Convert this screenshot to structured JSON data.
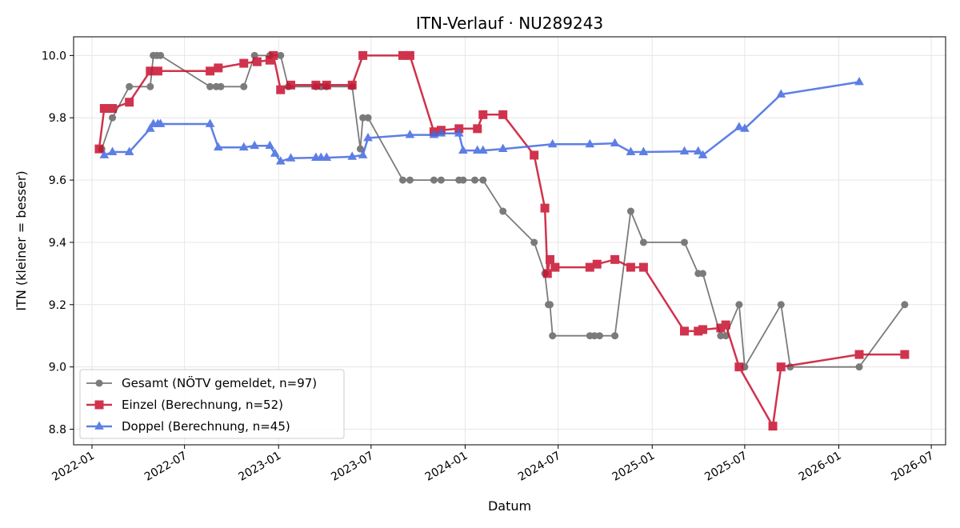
{
  "chart_data": {
    "type": "line",
    "title": "ITN-Verlauf · NU289243",
    "xlabel": "Datum",
    "ylabel": "ITN  (kleiner = besser)",
    "x_type": "date",
    "xlim": [
      "2021-11-26",
      "2026-07-29"
    ],
    "ylim": [
      8.75,
      10.06
    ],
    "grid": true,
    "legend_position": "lower-left",
    "x_ticks": [
      "2022-01-01",
      "2022-07-01",
      "2023-01-01",
      "2023-07-01",
      "2024-01-01",
      "2024-07-01",
      "2025-01-01",
      "2025-07-01",
      "2026-01-01",
      "2026-07-01"
    ],
    "x_tick_labels": [
      "2022-01",
      "2022-07",
      "2023-01",
      "2023-07",
      "2024-01",
      "2024-07",
      "2025-01",
      "2025-07",
      "2026-01",
      "2026-07"
    ],
    "y_ticks": [
      8.8,
      9.0,
      9.2,
      9.4,
      9.6,
      9.8,
      10.0
    ],
    "y_tick_labels": [
      "8.8",
      "9.0",
      "9.2",
      "9.4",
      "9.6",
      "9.8",
      "10.0"
    ],
    "series": [
      {
        "name": "Gesamt (NÖTV gemeldet, n=97)",
        "color": "#505050",
        "marker": "circle",
        "points": [
          [
            "2022-01-20",
            9.7
          ],
          [
            "2022-02-10",
            9.8
          ],
          [
            "2022-03-15",
            9.9
          ],
          [
            "2022-04-25",
            9.9
          ],
          [
            "2022-05-01",
            10.0
          ],
          [
            "2022-05-08",
            10.0
          ],
          [
            "2022-05-15",
            10.0
          ],
          [
            "2022-08-20",
            9.9
          ],
          [
            "2022-09-01",
            9.9
          ],
          [
            "2022-09-10",
            9.9
          ],
          [
            "2022-10-25",
            9.9
          ],
          [
            "2022-11-15",
            10.0
          ],
          [
            "2022-12-15",
            10.0
          ],
          [
            "2023-01-05",
            10.0
          ],
          [
            "2023-01-20",
            9.9
          ],
          [
            "2023-03-15",
            9.9
          ],
          [
            "2023-03-25",
            9.9
          ],
          [
            "2023-04-05",
            9.9
          ],
          [
            "2023-05-25",
            9.9
          ],
          [
            "2023-06-10",
            9.7
          ],
          [
            "2023-06-15",
            9.8
          ],
          [
            "2023-06-25",
            9.8
          ],
          [
            "2023-09-01",
            9.6
          ],
          [
            "2023-09-15",
            9.6
          ],
          [
            "2023-11-01",
            9.6
          ],
          [
            "2023-11-15",
            9.6
          ],
          [
            "2023-12-20",
            9.6
          ],
          [
            "2023-12-28",
            9.6
          ],
          [
            "2024-01-20",
            9.6
          ],
          [
            "2024-02-05",
            9.6
          ],
          [
            "2024-03-15",
            9.5
          ],
          [
            "2024-05-15",
            9.4
          ],
          [
            "2024-06-05",
            9.3
          ],
          [
            "2024-06-12",
            9.2
          ],
          [
            "2024-06-15",
            9.2
          ],
          [
            "2024-06-20",
            9.1
          ],
          [
            "2024-09-01",
            9.1
          ],
          [
            "2024-09-10",
            9.1
          ],
          [
            "2024-09-20",
            9.1
          ],
          [
            "2024-10-20",
            9.1
          ],
          [
            "2024-11-20",
            9.5
          ],
          [
            "2024-12-15",
            9.4
          ],
          [
            "2025-03-05",
            9.4
          ],
          [
            "2025-04-01",
            9.3
          ],
          [
            "2025-04-10",
            9.3
          ],
          [
            "2025-05-15",
            9.1
          ],
          [
            "2025-05-25",
            9.1
          ],
          [
            "2025-06-20",
            9.2
          ],
          [
            "2025-07-01",
            9.0
          ],
          [
            "2025-09-10",
            9.2
          ],
          [
            "2025-09-28",
            9.0
          ],
          [
            "2026-02-10",
            9.0
          ],
          [
            "2026-05-10",
            9.2
          ]
        ]
      },
      {
        "name": "Einzel (Berechnung, n=52)",
        "color": "#c8102e",
        "marker": "square",
        "points": [
          [
            "2022-01-15",
            9.7
          ],
          [
            "2022-01-25",
            9.83
          ],
          [
            "2022-02-10",
            9.83
          ],
          [
            "2022-03-15",
            9.85
          ],
          [
            "2022-04-25",
            9.95
          ],
          [
            "2022-05-10",
            9.95
          ],
          [
            "2022-08-20",
            9.95
          ],
          [
            "2022-09-05",
            9.96
          ],
          [
            "2022-10-25",
            9.975
          ],
          [
            "2022-11-20",
            9.98
          ],
          [
            "2022-12-15",
            9.985
          ],
          [
            "2022-12-22",
            10.0
          ],
          [
            "2023-01-05",
            9.89
          ],
          [
            "2023-01-25",
            9.905
          ],
          [
            "2023-03-15",
            9.905
          ],
          [
            "2023-04-05",
            9.905
          ],
          [
            "2023-05-25",
            9.905
          ],
          [
            "2023-06-15",
            10.0
          ],
          [
            "2023-09-01",
            10.0
          ],
          [
            "2023-09-15",
            10.0
          ],
          [
            "2023-11-01",
            9.755
          ],
          [
            "2023-11-15",
            9.76
          ],
          [
            "2023-12-20",
            9.765
          ],
          [
            "2024-01-25",
            9.765
          ],
          [
            "2024-02-05",
            9.81
          ],
          [
            "2024-03-15",
            9.81
          ],
          [
            "2024-05-15",
            9.68
          ],
          [
            "2024-06-05",
            9.51
          ],
          [
            "2024-06-10",
            9.3
          ],
          [
            "2024-06-15",
            9.345
          ],
          [
            "2024-06-25",
            9.32
          ],
          [
            "2024-09-01",
            9.32
          ],
          [
            "2024-09-15",
            9.33
          ],
          [
            "2024-10-20",
            9.345
          ],
          [
            "2024-11-20",
            9.32
          ],
          [
            "2024-12-15",
            9.32
          ],
          [
            "2025-03-05",
            9.115
          ],
          [
            "2025-04-01",
            9.115
          ],
          [
            "2025-04-10",
            9.12
          ],
          [
            "2025-05-15",
            9.125
          ],
          [
            "2025-05-25",
            9.135
          ],
          [
            "2025-06-20",
            9.0
          ],
          [
            "2025-08-25",
            8.81
          ],
          [
            "2025-09-10",
            9.0
          ],
          [
            "2026-02-10",
            9.04
          ],
          [
            "2026-05-10",
            9.04
          ]
        ]
      },
      {
        "name": "Doppel (Berechnung, n=45)",
        "color": "#4169e1",
        "marker": "triangle",
        "points": [
          [
            "2022-01-25",
            9.68
          ],
          [
            "2022-02-10",
            9.69
          ],
          [
            "2022-03-15",
            9.69
          ],
          [
            "2022-04-25",
            9.765
          ],
          [
            "2022-05-01",
            9.78
          ],
          [
            "2022-05-10",
            9.78
          ],
          [
            "2022-05-15",
            9.78
          ],
          [
            "2022-08-20",
            9.78
          ],
          [
            "2022-09-05",
            9.705
          ],
          [
            "2022-10-25",
            9.705
          ],
          [
            "2022-11-15",
            9.71
          ],
          [
            "2022-12-15",
            9.71
          ],
          [
            "2022-12-25",
            9.685
          ],
          [
            "2023-01-05",
            9.66
          ],
          [
            "2023-01-25",
            9.67
          ],
          [
            "2023-03-15",
            9.672
          ],
          [
            "2023-03-25",
            9.672
          ],
          [
            "2023-04-05",
            9.672
          ],
          [
            "2023-05-25",
            9.675
          ],
          [
            "2023-06-15",
            9.68
          ],
          [
            "2023-06-25",
            9.735
          ],
          [
            "2023-09-15",
            9.745
          ],
          [
            "2023-11-01",
            9.745
          ],
          [
            "2023-11-15",
            9.75
          ],
          [
            "2023-12-20",
            9.75
          ],
          [
            "2023-12-28",
            9.695
          ],
          [
            "2024-01-25",
            9.695
          ],
          [
            "2024-02-05",
            9.695
          ],
          [
            "2024-03-15",
            9.7
          ],
          [
            "2024-06-20",
            9.715
          ],
          [
            "2024-09-01",
            9.715
          ],
          [
            "2024-10-20",
            9.718
          ],
          [
            "2024-11-20",
            9.69
          ],
          [
            "2024-12-15",
            9.69
          ],
          [
            "2025-03-05",
            9.692
          ],
          [
            "2025-04-01",
            9.692
          ],
          [
            "2025-04-10",
            9.68
          ],
          [
            "2025-06-20",
            9.77
          ],
          [
            "2025-07-01",
            9.765
          ],
          [
            "2025-09-10",
            9.875
          ],
          [
            "2026-02-10",
            9.915
          ]
        ]
      }
    ]
  }
}
